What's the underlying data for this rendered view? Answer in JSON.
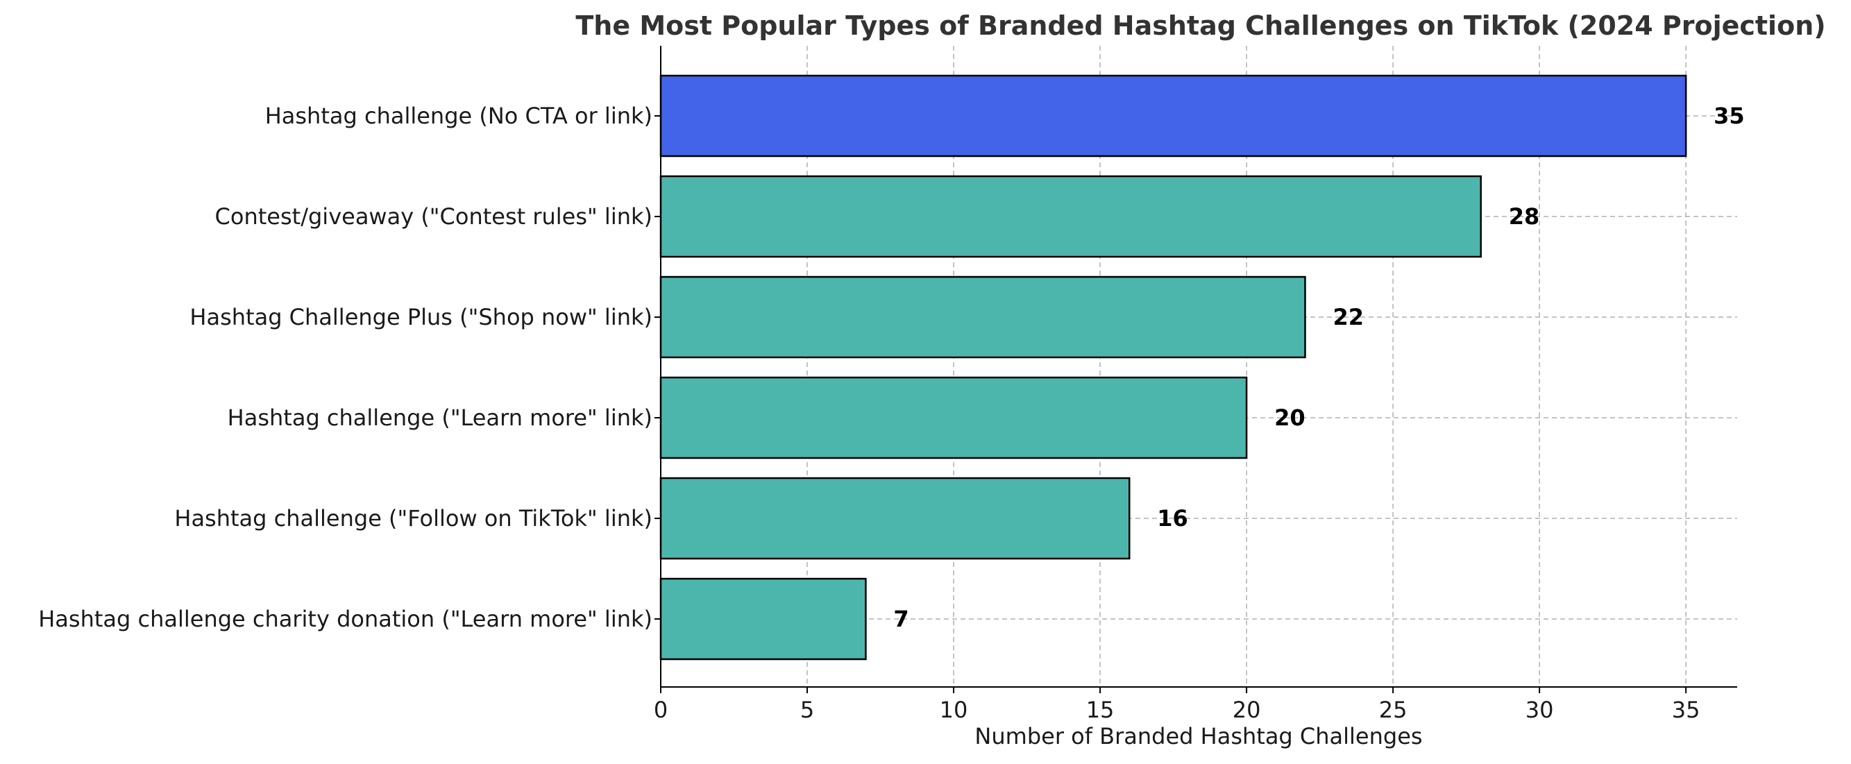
{
  "chart_data": {
    "type": "bar",
    "orientation": "horizontal",
    "title": "The Most Popular Types of Branded Hashtag Challenges on TikTok (2024 Projection)",
    "xlabel": "Number of Branded Hashtag Challenges",
    "ylabel": "",
    "xlim": [
      0,
      36.75
    ],
    "xticks": [
      "0",
      "5",
      "10",
      "15",
      "20",
      "25",
      "30",
      "35"
    ],
    "grid": true,
    "categories": [
      "Hashtag challenge (No CTA or link)",
      "Contest/giveaway (\"Contest rules\" link)",
      "Hashtag Challenge Plus (\"Shop now\" link)",
      "Hashtag challenge (\"Learn more\" link)",
      "Hashtag challenge (\"Follow on TikTok\" link)",
      "Hashtag challenge charity donation (\"Learn more\" link)"
    ],
    "values": [
      35,
      28,
      22,
      20,
      16,
      7
    ],
    "value_labels": [
      "35",
      "28",
      "22",
      "20",
      "16",
      "7"
    ],
    "highlight_index": 0,
    "colors": {
      "highlight": "#4363E8",
      "default": "#4DB6AC",
      "edge": "#000000",
      "title": "#333333",
      "grid": "#b0b0b0"
    }
  }
}
